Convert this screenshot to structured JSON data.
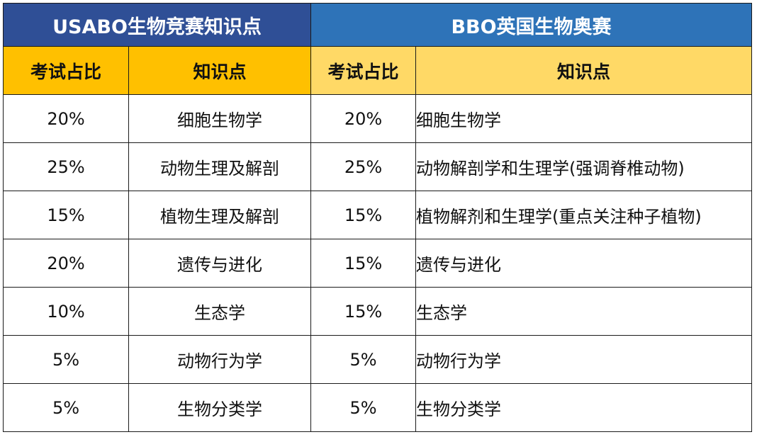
{
  "usabo": {
    "title": "USABO生物竞赛知识点",
    "col_ratio": "考试占比",
    "col_topic": "知识点"
  },
  "bbo": {
    "title": "BBO英国生物奥赛",
    "col_ratio": "考试占比",
    "col_topic": "知识点"
  },
  "rows": [
    {
      "usabo_ratio": "20%",
      "usabo_topic": "细胞生物学",
      "bbo_ratio": "20%",
      "bbo_topic": "细胞生物学"
    },
    {
      "usabo_ratio": "25%",
      "usabo_topic": "动物生理及解剖",
      "bbo_ratio": "25%",
      "bbo_topic": "动物解剖学和生理学(强调脊椎动物)"
    },
    {
      "usabo_ratio": "15%",
      "usabo_topic": "植物生理及解剖",
      "bbo_ratio": "15%",
      "bbo_topic": "植物解剂和生理学(重点关注种子植物)"
    },
    {
      "usabo_ratio": "20%",
      "usabo_topic": "遗传与进化",
      "bbo_ratio": "15%",
      "bbo_topic": "遗传与进化"
    },
    {
      "usabo_ratio": "10%",
      "usabo_topic": "生态学",
      "bbo_ratio": "15%",
      "bbo_topic": "生态学"
    },
    {
      "usabo_ratio": "5%",
      "usabo_topic": "动物行为学",
      "bbo_ratio": "5%",
      "bbo_topic": "动物行为学"
    },
    {
      "usabo_ratio": "5%",
      "usabo_topic": "生物分类学",
      "bbo_ratio": "5%",
      "bbo_topic": "生物分类学"
    }
  ]
}
